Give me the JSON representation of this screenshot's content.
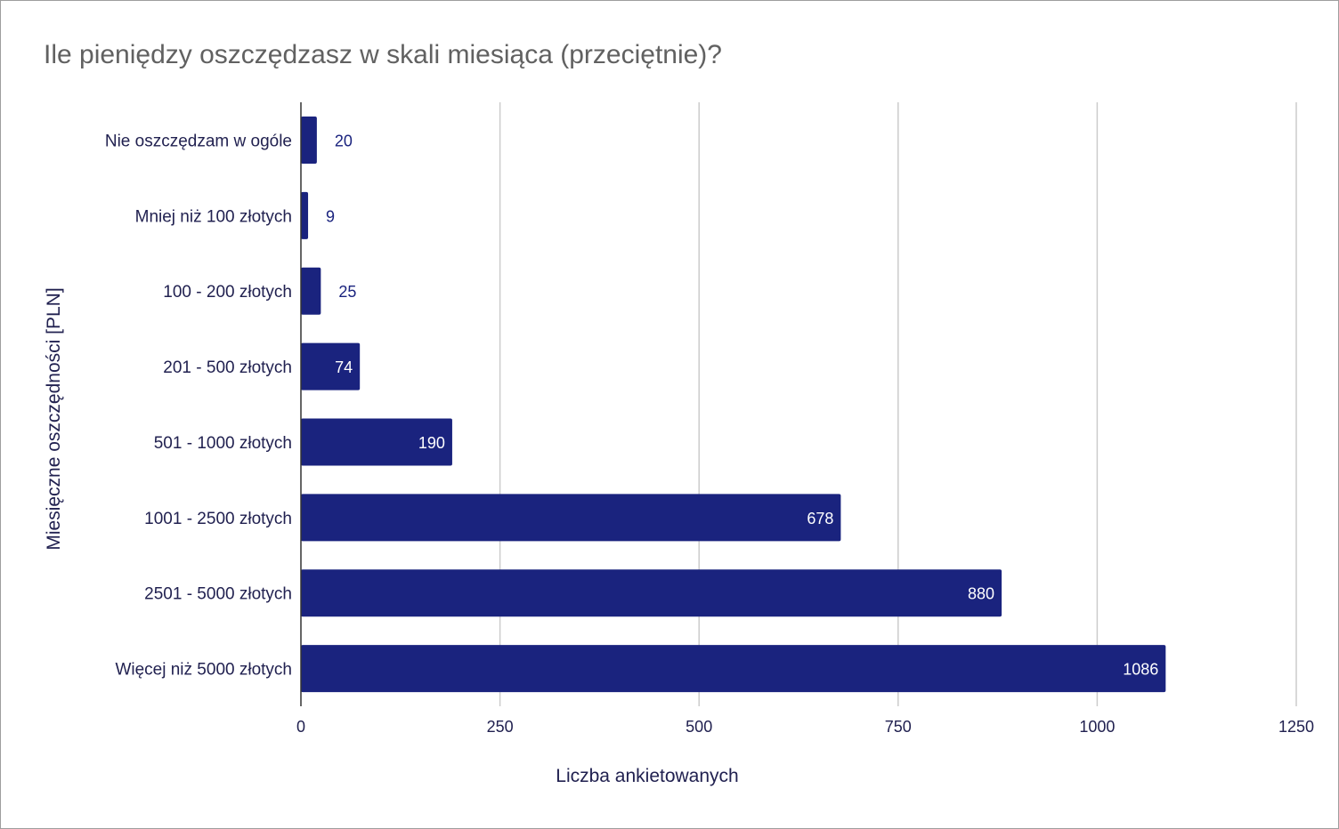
{
  "chart_data": {
    "type": "bar",
    "orientation": "horizontal",
    "title": "Ile pieniędzy oszczędzasz w skali miesiąca (przeciętnie)?",
    "xlabel": "Liczba ankietowanych",
    "ylabel": "Miesięczne oszczędności [PLN]",
    "categories": [
      "Nie oszczędzam w ogóle",
      "Mniej niż 100 złotych",
      "100 - 200 złotych",
      "201 - 500 złotych",
      "501 - 1000 złotych",
      "1001 - 2500 złotych",
      "2501 - 5000 złotych",
      "Więcej niż 5000 złotych"
    ],
    "values": [
      20,
      9,
      25,
      74,
      190,
      678,
      880,
      1086
    ],
    "xlim": [
      0,
      1250
    ],
    "xticks": [
      "0",
      "250",
      "500",
      "750",
      "1000",
      "1250"
    ],
    "grid": true,
    "bar_color": "#1a237e",
    "grid_color": "#cccccc",
    "data_labels": true
  }
}
